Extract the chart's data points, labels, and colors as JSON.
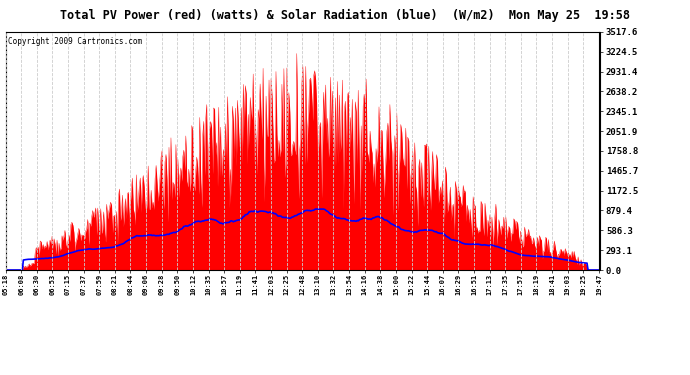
{
  "title": "Total PV Power (red) (watts) & Solar Radiation (blue)  (W/m2)  Mon May 25  19:58",
  "copyright": "Copyright 2009 Cartronics.com",
  "y_max": 3517.6,
  "y_ticks": [
    0.0,
    293.1,
    586.3,
    879.4,
    1172.5,
    1465.7,
    1758.8,
    2051.9,
    2345.1,
    2638.2,
    2931.4,
    3224.5,
    3517.6
  ],
  "x_labels": [
    "05:18",
    "06:08",
    "06:30",
    "06:53",
    "07:15",
    "07:37",
    "07:59",
    "08:21",
    "08:44",
    "09:06",
    "09:28",
    "09:50",
    "10:12",
    "10:35",
    "10:57",
    "11:19",
    "11:41",
    "12:03",
    "12:25",
    "12:48",
    "13:10",
    "13:32",
    "13:54",
    "14:16",
    "14:38",
    "15:00",
    "15:22",
    "15:44",
    "16:07",
    "16:29",
    "16:51",
    "17:13",
    "17:35",
    "17:57",
    "18:19",
    "18:41",
    "19:03",
    "19:25",
    "19:47"
  ],
  "bg_color": "#ffffff",
  "plot_bg_color": "#ffffff",
  "grid_color": "#aaaaaa",
  "red_color": "#ff0000",
  "blue_color": "#0000ff",
  "title_bg": "#cccccc",
  "border_color": "#000000",
  "n_points": 600,
  "pv_peak": 3517.6,
  "sol_peak": 900.0
}
